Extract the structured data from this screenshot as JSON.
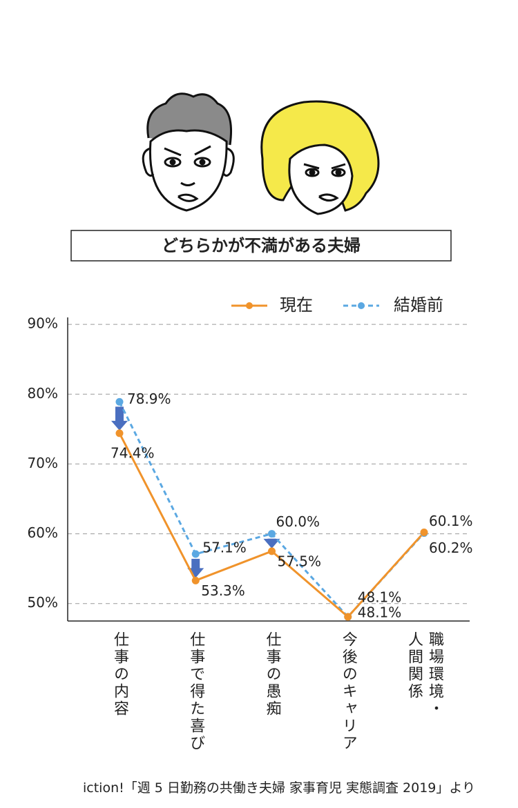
{
  "chart_data": {
    "type": "line",
    "title": "どちらかが不満がある夫婦",
    "categories": [
      "仕事の内容",
      "仕事で得た喜び",
      "仕事の愚痴",
      "今後のキャリア",
      "職場環境・\n人間関係"
    ],
    "series": [
      {
        "name": "現在",
        "color": "#f0932b",
        "values": [
          74.4,
          53.3,
          57.5,
          48.1,
          60.2
        ],
        "value_labels": [
          "74.4%",
          "53.3%",
          "57.5%",
          "48.1%",
          "60.2%"
        ]
      },
      {
        "name": "結婚前",
        "color": "#5ba8e2",
        "values": [
          78.9,
          57.1,
          60.0,
          48.1,
          60.1
        ],
        "value_labels": [
          "78.9%",
          "57.1%",
          "60.0%",
          "48.1%",
          "60.1%"
        ]
      }
    ],
    "ylim": [
      47.5,
      91
    ],
    "yticks": [
      {
        "value": 50,
        "label": "50%"
      },
      {
        "value": 60,
        "label": "60%"
      },
      {
        "value": 70,
        "label": "70%"
      },
      {
        "value": 80,
        "label": "80%"
      },
      {
        "value": 90,
        "label": "90%"
      }
    ],
    "grid": true,
    "arrow_color": "#4a6fc0",
    "source": "iction!「週 5 日勤務の共働き夫婦 家事育児 実態調査 2019」より"
  }
}
